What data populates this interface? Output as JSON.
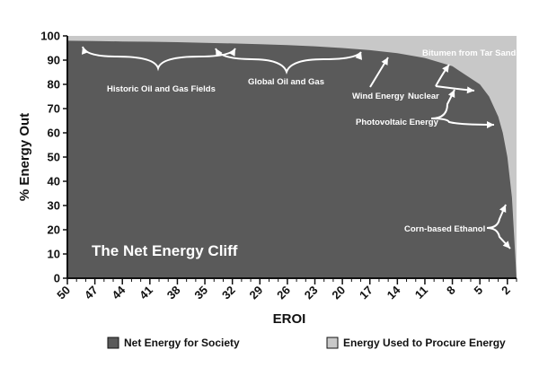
{
  "chart_data": {
    "type": "area",
    "title": "The Net Energy Cliff",
    "xlabel": "EROI",
    "ylabel": "% Energy Out",
    "x_ticks": [
      "50",
      "47",
      "44",
      "41",
      "38",
      "35",
      "32",
      "29",
      "26",
      "23",
      "20",
      "17",
      "14",
      "11",
      "8",
      "5",
      "2"
    ],
    "y_ticks": [
      "0",
      "10",
      "20",
      "30",
      "40",
      "50",
      "60",
      "70",
      "80",
      "90",
      "100"
    ],
    "xlim": [
      50,
      1
    ],
    "ylim": [
      0,
      100
    ],
    "grid": false,
    "legend_position": "bottom",
    "series": [
      {
        "name": "Net Energy for Society",
        "color": "#5a5a5a",
        "x": [
          50,
          47,
          44,
          41,
          38,
          35,
          32,
          29,
          26,
          23,
          20,
          17,
          14,
          11,
          8,
          5,
          4,
          3,
          2.5,
          2,
          1.5,
          1
        ],
        "values": [
          98,
          97.9,
          97.7,
          97.6,
          97.4,
          97.1,
          96.9,
          96.6,
          96.2,
          95.7,
          95,
          94.1,
          92.9,
          90.9,
          87.5,
          80,
          75,
          66.7,
          60,
          50,
          33.3,
          0
        ]
      },
      {
        "name": "Energy Used to Procure Energy",
        "color": "#c8c8c8",
        "x": [
          50,
          47,
          44,
          41,
          38,
          35,
          32,
          29,
          26,
          23,
          20,
          17,
          14,
          11,
          8,
          5,
          4,
          3,
          2.5,
          2,
          1.5,
          1
        ],
        "values": [
          2,
          2.1,
          2.3,
          2.4,
          2.6,
          2.9,
          3.1,
          3.4,
          3.8,
          4.3,
          5,
          5.9,
          7.1,
          9.1,
          12.5,
          20,
          25,
          33.3,
          40,
          50,
          66.7,
          100
        ]
      }
    ],
    "annotations": [
      {
        "label": "Historic Oil and Gas Fields"
      },
      {
        "label": "Global Oil and Gas"
      },
      {
        "label": "Bitumen from Tar Sands"
      },
      {
        "label": "Wind Energy"
      },
      {
        "label": "Nuclear"
      },
      {
        "label": "Photovoltaic Energy"
      },
      {
        "label": "Corn-based Ethanol"
      }
    ]
  },
  "legend": {
    "net": "Net Energy for Society",
    "used": "Energy Used to Procure Energy"
  },
  "colors": {
    "net_fill": "#5a5a5a",
    "used_fill": "#c8c8c8",
    "annotation": "#ffffff"
  }
}
